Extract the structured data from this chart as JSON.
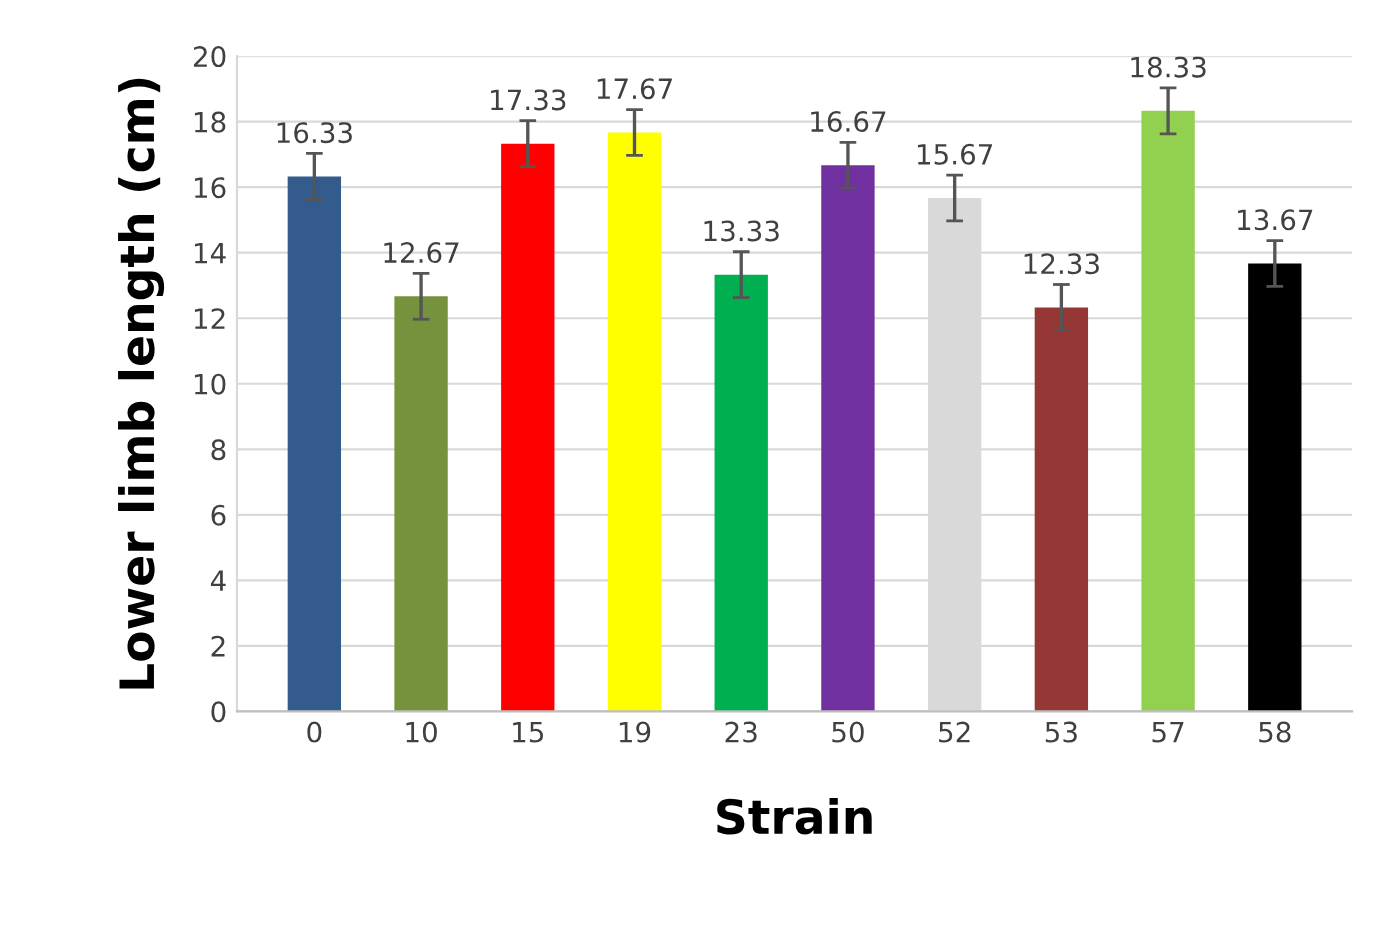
{
  "chart_data": {
    "type": "bar",
    "xlabel": "Strain",
    "ylabel": "Lower limb length (cm)",
    "categories": [
      "0",
      "10",
      "15",
      "19",
      "23",
      "50",
      "52",
      "53",
      "57",
      "58"
    ],
    "values": [
      16.33,
      12.67,
      17.33,
      17.67,
      13.33,
      16.67,
      15.67,
      12.33,
      18.33,
      13.67
    ],
    "colors": [
      "#335c8c",
      "#76923c",
      "#ff0000",
      "#ffff00",
      "#00b050",
      "#7030a0",
      "#d9d9d9",
      "#953735",
      "#92d050",
      "#000000"
    ],
    "errors": [
      0.7,
      0.7,
      0.7,
      0.7,
      0.7,
      0.7,
      0.7,
      0.7,
      0.7,
      0.7
    ],
    "data_labels": true,
    "ylim": [
      0,
      20
    ],
    "yticks": [
      0,
      2,
      4,
      6,
      8,
      10,
      12,
      14,
      16,
      18,
      20
    ],
    "grid": "y"
  }
}
